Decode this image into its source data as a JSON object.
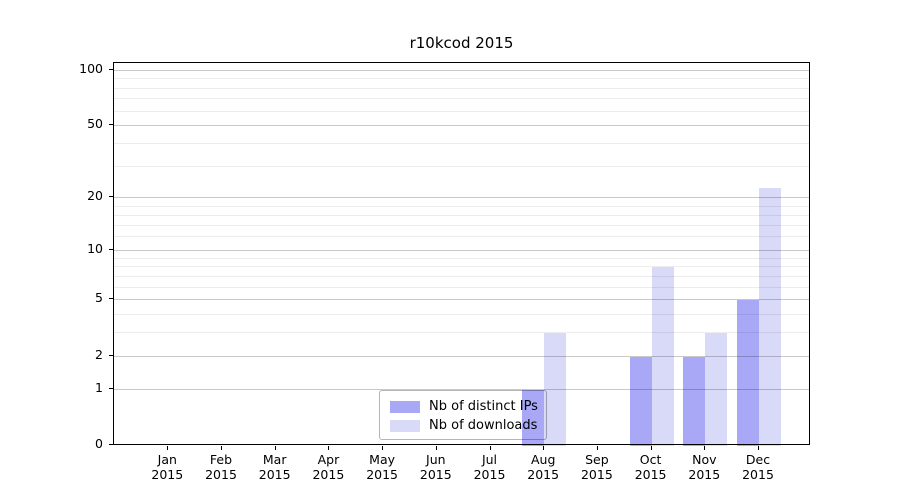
{
  "title": "r10kcod 2015",
  "chart_data": {
    "type": "bar",
    "title": "r10kcod 2015",
    "categories": [
      "Jan",
      "Feb",
      "Mar",
      "Apr",
      "May",
      "Jun",
      "Jul",
      "Aug",
      "Sep",
      "Oct",
      "Nov",
      "Dec"
    ],
    "year_label": "2015",
    "series": [
      {
        "name": "Nb of distinct IPs",
        "color": "#a8a8f7",
        "values": [
          0,
          0,
          0,
          0,
          0,
          0,
          0,
          1,
          0,
          2,
          2,
          5
        ]
      },
      {
        "name": "Nb of downloads",
        "color": "#d9d9f8",
        "values": [
          0,
          0,
          0,
          0,
          0,
          0,
          0,
          3,
          0,
          8,
          3,
          23
        ]
      }
    ],
    "xlabel": "",
    "ylabel": "",
    "yscale": "log1p",
    "ylim": [
      0,
      110
    ],
    "yticks": [
      0,
      1,
      2,
      5,
      10,
      20,
      50,
      100
    ],
    "ytick_labels": [
      "0",
      "1",
      "2",
      "5",
      "10",
      "20",
      "50",
      "100"
    ],
    "minor_gridlines": [
      3,
      4,
      6,
      7,
      8,
      9,
      12,
      14,
      16,
      18,
      30,
      40,
      60,
      70,
      80,
      90
    ],
    "grid": "horizontal",
    "legend_position": "inside-bottom-center",
    "background_color": "#ffffff",
    "axis_color": "#000000",
    "major_grid_color": "#c9c9c9",
    "minor_grid_color": "#ededed"
  }
}
